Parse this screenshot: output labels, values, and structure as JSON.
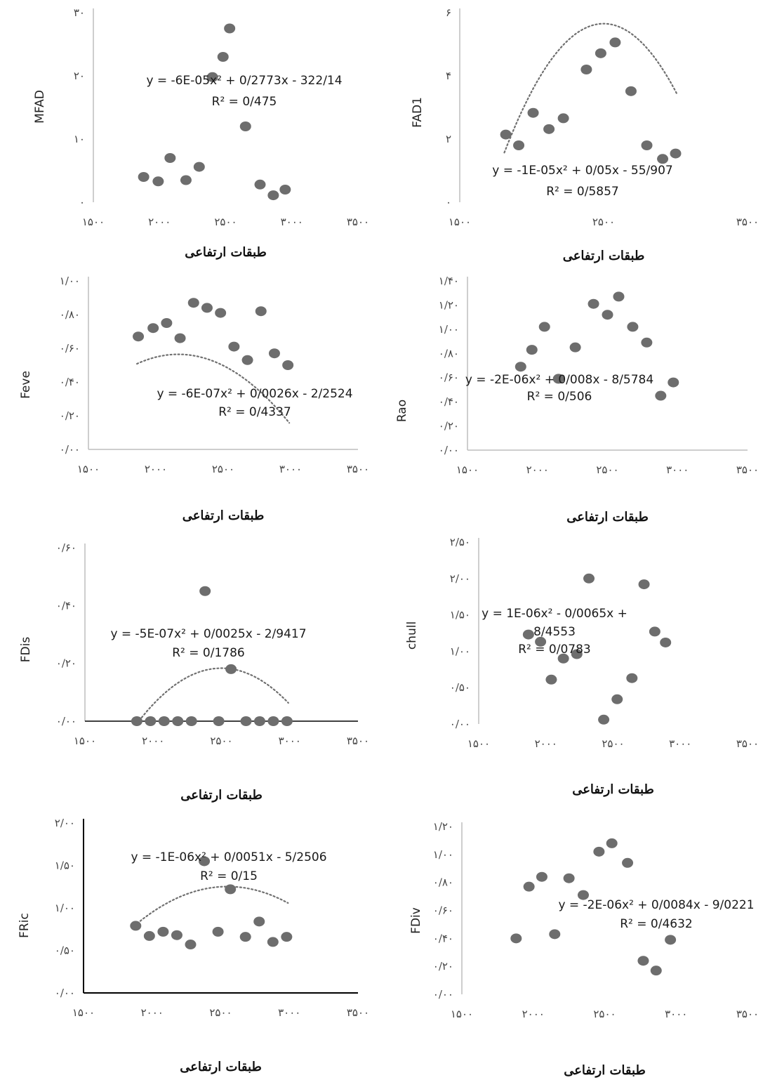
{
  "chart_data": [
    {
      "type": "scatter",
      "ylabel": "MFAD",
      "xlabel": "طبقات ارتفاعی",
      "xlim": [
        1500,
        3500
      ],
      "ylim": [
        0,
        30
      ],
      "xticks": [
        "۱۵۰۰",
        "۲۰۰۰",
        "۲۵۰۰",
        "۳۰۰۰",
        "۳۵۰۰"
      ],
      "yticks": [
        "۰",
        "۱۰",
        "۲۰",
        "۳۰"
      ],
      "trendline_equation": "y = -6E-05x² + 0/2773x - 322/14",
      "r_squared": "R² = 0/475",
      "trend": {
        "a": -6e-05,
        "b": 0.2773,
        "c": -322.14
      },
      "x": [
        1880,
        1990,
        2080,
        2200,
        2300,
        2400,
        2480,
        2530,
        2650,
        2760,
        2860,
        2950
      ],
      "y": [
        4.0,
        3.3,
        7.0,
        3.5,
        5.6,
        19.8,
        23.0,
        27.5,
        12.0,
        2.8,
        1.1,
        2.0
      ]
    },
    {
      "type": "scatter",
      "ylabel": "FAD1",
      "xlabel": "طبقات ارتفاعی",
      "xlim": [
        1500,
        3500
      ],
      "ylim": [
        0,
        7
      ],
      "xticks": [
        "۱۵۰۰",
        "۲۵۰۰",
        "۳۵۰۰"
      ],
      "yticks": [
        "۰",
        "۲",
        "۴",
        "۶"
      ],
      "trendline_equation": "y = -1E-05x² + 0/05x - 55/907",
      "r_squared": "R² = 0/5857",
      "trend": {
        "a": -1e-05,
        "b": 0.05,
        "c": -55.907
      },
      "x": [
        1820,
        1910,
        2010,
        2120,
        2220,
        2380,
        2480,
        2580,
        2690,
        2800,
        2910,
        3000
      ],
      "y": [
        2.5,
        2.1,
        3.3,
        2.7,
        3.1,
        4.9,
        5.5,
        5.9,
        4.1,
        2.1,
        1.6,
        1.8
      ]
    },
    {
      "type": "scatter",
      "ylabel": "Feve",
      "xlabel": "طبقات ارتفاعی",
      "xlim": [
        1500,
        3500
      ],
      "ylim": [
        0,
        1
      ],
      "xticks": [
        "۱۵۰۰",
        "۲۰۰۰",
        "۲۵۰۰",
        "۳۰۰۰",
        "۳۵۰۰"
      ],
      "yticks": [
        "۰/۰۰",
        "۰/۲۰",
        "۰/۴۰",
        "۰/۶۰",
        "۰/۸۰",
        "۱/۰۰"
      ],
      "trendline_equation": "y = -6E-07x² + 0/0026x - 2/2524",
      "r_squared": "R² = 0/4337",
      "trend": {
        "a": -6e-07,
        "b": 0.0026,
        "c": -2.2524
      },
      "x": [
        1870,
        1980,
        2080,
        2180,
        2280,
        2380,
        2480,
        2580,
        2680,
        2780,
        2880,
        2980
      ],
      "y": [
        0.67,
        0.72,
        0.75,
        0.66,
        0.87,
        0.84,
        0.81,
        0.61,
        0.53,
        0.82,
        0.57,
        0.5
      ]
    },
    {
      "type": "scatter",
      "ylabel": "Rao",
      "xlabel": "طبقات ارتفاعی",
      "xlim": [
        1500,
        3500
      ],
      "ylim": [
        0,
        1.4
      ],
      "xticks": [
        "۱۵۰۰",
        "۲۰۰۰",
        "۲۵۰۰",
        "۳۰۰۰",
        "۳۵۰۰"
      ],
      "yticks": [
        "۰/۰۰",
        "۰/۲۰",
        "۰/۴۰",
        "۰/۶۰",
        "۰/۸۰",
        "۱/۰۰",
        "۱/۲۰",
        "۱/۴۰"
      ],
      "trendline_equation": "y = -2E-06x² + 0/008x - 8/5784",
      "r_squared": "R² = 0/506",
      "trend": {
        "a": -2e-06,
        "b": 0.008,
        "c": -8.5784
      },
      "x": [
        1880,
        1960,
        2050,
        2150,
        2270,
        2400,
        2500,
        2580,
        2680,
        2780,
        2880,
        2970
      ],
      "y": [
        0.69,
        0.83,
        1.02,
        0.59,
        0.85,
        1.21,
        1.12,
        1.27,
        1.02,
        0.89,
        0.45,
        0.56
      ]
    },
    {
      "type": "scatter",
      "ylabel": "FDis",
      "xlabel": "طبقات ارتفاعی",
      "xlim": [
        1500,
        3500
      ],
      "ylim": [
        0,
        0.6
      ],
      "xticks": [
        "۱۵۰۰",
        "۲۰۰۰",
        "۲۵۰۰",
        "۳۰۰۰",
        "۳۵۰۰"
      ],
      "yticks": [
        "۰/۰۰",
        "۰/۲۰",
        "۰/۴۰",
        "۰/۶۰"
      ],
      "trendline_equation": "y = -5E-07x² + 0/0025x - 2/9417",
      "r_squared": "R² = 0/1786",
      "trend": {
        "a": -5e-07,
        "b": 0.0025,
        "c": -2.9417
      },
      "x": [
        1880,
        1980,
        2080,
        2180,
        2280,
        2380,
        2480,
        2570,
        2680,
        2780,
        2880,
        2980
      ],
      "y": [
        0,
        0,
        0,
        0,
        0,
        0.45,
        0,
        0.18,
        0,
        0,
        0,
        0
      ]
    },
    {
      "type": "scatter",
      "ylabel": "chull",
      "xlabel": "طبقات ارتفاعی",
      "xlim": [
        1500,
        3500
      ],
      "ylim": [
        0,
        2.5
      ],
      "xticks": [
        "۱۵۰۰",
        "۲۰۰۰",
        "۲۵۰۰",
        "۳۰۰۰",
        "۳۵۰۰"
      ],
      "yticks": [
        "۰/۰۰",
        "۰/۵۰",
        "۱/۰۰",
        "۱/۵۰",
        "۲/۰۰",
        "۲/۵۰"
      ],
      "trendline_equation": "y = 1E-06x² - 0/0065x + 8/4553",
      "r_squared": "R² = 0/0783",
      "trend": {
        "a": 1e-06,
        "b": -0.0065,
        "c": 8.4553
      },
      "x": [
        1870,
        1960,
        2040,
        2130,
        2230,
        2320,
        2430,
        2530,
        2640,
        2730,
        2810,
        2890
      ],
      "y": [
        1.23,
        1.13,
        0.61,
        0.9,
        0.96,
        2.0,
        0.06,
        0.34,
        0.63,
        1.92,
        1.27,
        1.12
      ]
    },
    {
      "type": "scatter",
      "ylabel": "FRic",
      "xlabel": "طبقات ارتفاعی",
      "xlim": [
        1500,
        3500
      ],
      "ylim": [
        0,
        2
      ],
      "xticks": [
        "۱۵۰۰",
        "۲۰۰۰",
        "۲۵۰۰",
        "۳۰۰۰",
        "۳۵۰۰"
      ],
      "yticks": [
        "۰/۰۰",
        "۰/۵۰",
        "۱/۰۰",
        "۱/۵۰",
        "۲/۰۰"
      ],
      "trendline_equation": "y = -1E-06x² + 0/0051x - 5/2506",
      "r_squared": "R² = 0/15",
      "trend": {
        "a": -1e-06,
        "b": 0.0051,
        "c": -5.2506
      },
      "x": [
        1880,
        1980,
        2080,
        2180,
        2280,
        2380,
        2480,
        2570,
        2680,
        2780,
        2880,
        2980
      ],
      "y": [
        0.79,
        0.67,
        0.72,
        0.68,
        0.57,
        1.55,
        0.72,
        1.22,
        0.66,
        0.84,
        0.6,
        0.66
      ]
    },
    {
      "type": "scatter",
      "ylabel": "FDiv",
      "xlabel": "طبقات ارتفاعی",
      "xlim": [
        1500,
        3500
      ],
      "ylim": [
        0,
        1.2
      ],
      "xticks": [
        "۱۵۰۰",
        "۲۰۰۰",
        "۲۵۰۰",
        "۳۰۰۰",
        "۳۵۰۰"
      ],
      "yticks": [
        "۰/۰۰",
        "۰/۲۰",
        "۰/۴۰",
        "۰/۶۰",
        "۰/۸۰",
        "۱/۰۰",
        "۱/۲۰"
      ],
      "trendline_equation": "y = -2E-06x² + 0/0084x - 9/0221",
      "r_squared": "R² = 0/4632",
      "trend": {
        "a": -2e-06,
        "b": 0.0084,
        "c": -9.0221
      },
      "x": [
        1880,
        1970,
        2060,
        2150,
        2250,
        2350,
        2460,
        2550,
        2660,
        2770,
        2860,
        2960
      ],
      "y": [
        0.4,
        0.77,
        0.84,
        0.43,
        0.83,
        0.71,
        1.02,
        1.08,
        0.94,
        0.24,
        0.17,
        0.39
      ]
    }
  ]
}
